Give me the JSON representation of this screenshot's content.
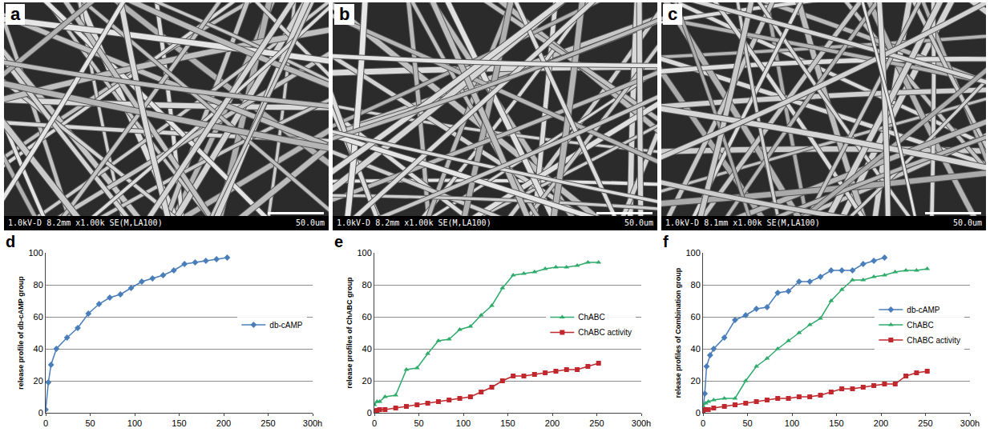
{
  "images": [
    {
      "label": "a",
      "info": "1.0kV-D 8.2mm x1.00k SE(M,LA100)",
      "scale_bar": "50.0um"
    },
    {
      "label": "b",
      "info": "1.0kV-D 8.2mm x1.00k SE(M,LA100)",
      "scale_bar": "50.0um"
    },
    {
      "label": "c",
      "info": "1.0kV-D 8.1mm x1.00k SE(M,LA100)",
      "scale_bar": "50.0um"
    }
  ],
  "chart_data": [
    {
      "label": "d",
      "type": "line",
      "y_label": "release profile of db-cAMP group",
      "xlim": [
        0,
        300
      ],
      "xticks": [
        0,
        50,
        100,
        150,
        200,
        250,
        {
          "value": 300,
          "label": "300h"
        }
      ],
      "ylim": [
        0,
        100
      ],
      "yticks": [
        0,
        20,
        40,
        60,
        80,
        100
      ],
      "grid": true,
      "legend": "right",
      "series": [
        {
          "name": "db-cAMP",
          "color": "#4a7ebb",
          "marker": "diamond",
          "x": [
            0,
            3,
            6,
            12,
            24,
            36,
            48,
            60,
            72,
            84,
            96,
            108,
            120,
            132,
            144,
            156,
            168,
            180,
            192,
            204
          ],
          "values": [
            2,
            19,
            30,
            40,
            47,
            53,
            62,
            68,
            72,
            74,
            78,
            82,
            84,
            86,
            89,
            93,
            94,
            95,
            96,
            97
          ]
        }
      ]
    },
    {
      "label": "e",
      "type": "line",
      "y_label": "release profiles of ChABC group",
      "xlim": [
        0,
        300
      ],
      "xticks": [
        0,
        50,
        100,
        150,
        200,
        250,
        {
          "value": 300,
          "label": "300h"
        }
      ],
      "ylim": [
        0,
        100
      ],
      "yticks": [
        0,
        20,
        40,
        60,
        80,
        100
      ],
      "grid": true,
      "legend": "right",
      "series": [
        {
          "name": "ChABC",
          "color": "#2eab6b",
          "marker": "triangle-up",
          "x": [
            0,
            3,
            6,
            12,
            24,
            36,
            48,
            60,
            72,
            84,
            96,
            108,
            120,
            132,
            144,
            156,
            168,
            180,
            192,
            204,
            216,
            228,
            240,
            252
          ],
          "values": [
            5,
            7,
            7,
            10,
            11,
            27,
            28,
            37,
            45,
            46,
            52,
            54,
            61,
            67,
            78,
            86,
            87,
            88,
            90,
            91,
            91,
            92,
            94,
            94
          ]
        },
        {
          "name": "ChABC activity",
          "color": "#c0282d",
          "marker": "square",
          "x": [
            0,
            3,
            6,
            12,
            24,
            36,
            48,
            60,
            72,
            84,
            96,
            108,
            120,
            132,
            144,
            156,
            168,
            180,
            192,
            204,
            216,
            228,
            240,
            252
          ],
          "values": [
            1,
            1.5,
            2,
            2,
            3,
            4,
            5,
            6,
            7,
            8,
            9,
            10,
            13,
            16,
            20,
            23,
            23,
            24,
            25,
            26,
            27,
            27,
            29,
            31
          ]
        }
      ]
    },
    {
      "label": "f",
      "type": "line",
      "y_label": "release profiles of Combination group",
      "xlim": [
        0,
        300
      ],
      "xticks": [
        0,
        50,
        100,
        150,
        200,
        250,
        {
          "value": 300,
          "label": "300h"
        }
      ],
      "ylim": [
        0,
        100
      ],
      "yticks": [
        0,
        20,
        40,
        60,
        80,
        100
      ],
      "grid": true,
      "legend": "right",
      "series": [
        {
          "name": "db-cAMP",
          "color": "#4a7ebb",
          "marker": "diamond",
          "x": [
            0,
            2,
            4,
            8,
            12,
            24,
            36,
            48,
            60,
            72,
            84,
            96,
            108,
            120,
            132,
            144,
            156,
            168,
            180,
            192,
            204
          ],
          "values": [
            2,
            12,
            29,
            36,
            40,
            47,
            58,
            61,
            65,
            66,
            75,
            76,
            82,
            82,
            85,
            89,
            89,
            89,
            93,
            95,
            97
          ]
        },
        {
          "name": "ChABC",
          "color": "#2eab6b",
          "marker": "triangle-up",
          "x": [
            0,
            3,
            6,
            12,
            24,
            36,
            48,
            60,
            72,
            84,
            96,
            108,
            120,
            132,
            144,
            156,
            168,
            180,
            192,
            204,
            216,
            228,
            240,
            252
          ],
          "values": [
            4,
            6,
            7,
            8,
            9,
            9,
            20,
            29,
            34,
            40,
            45,
            50,
            55,
            59,
            70,
            77,
            83,
            83,
            85,
            86,
            88,
            89,
            89,
            90
          ]
        },
        {
          "name": "ChABC activity",
          "color": "#c0282d",
          "marker": "square",
          "x": [
            0,
            3,
            6,
            12,
            24,
            36,
            48,
            60,
            72,
            84,
            96,
            108,
            120,
            132,
            144,
            156,
            168,
            180,
            192,
            204,
            216,
            228,
            240,
            252
          ],
          "values": [
            1,
            2,
            2,
            3,
            4,
            5,
            6,
            7,
            8,
            9,
            9,
            10,
            10,
            11,
            13,
            15,
            15,
            16,
            17,
            18,
            18,
            23,
            25,
            26
          ]
        }
      ]
    }
  ]
}
